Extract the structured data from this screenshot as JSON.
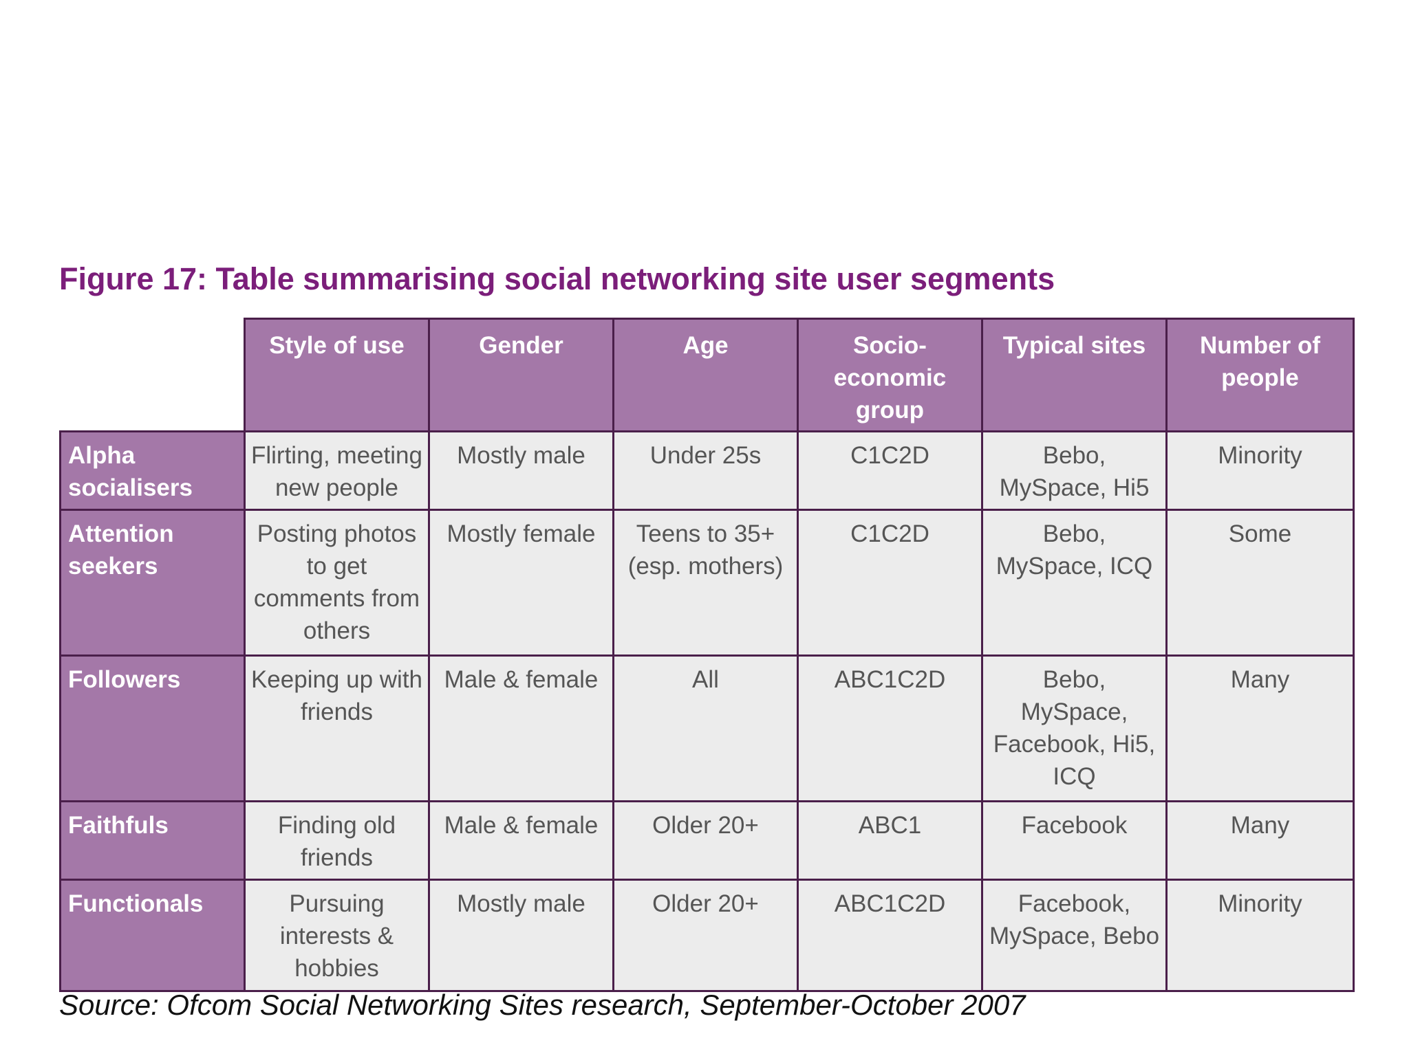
{
  "title": "Figure 17: Table summarising social networking site user segments",
  "columns": [
    "Style of use",
    "Gender",
    "Age",
    "Socio-economic group",
    "Typical sites",
    "Number of people"
  ],
  "rows": [
    {
      "segment": "Alpha socialisers",
      "cells": [
        "Flirting, meeting new people",
        "Mostly male",
        "Under 25s",
        "C1C2D",
        "Bebo, MySpace, Hi5",
        "Minority"
      ]
    },
    {
      "segment": "Attention seekers",
      "cells": [
        "Posting photos to get comments from others",
        "Mostly female",
        "Teens to 35+ (esp. mothers)",
        "C1C2D",
        "Bebo, MySpace, ICQ",
        "Some"
      ]
    },
    {
      "segment": "Followers",
      "cells": [
        "Keeping up with friends",
        "Male & female",
        "All",
        "ABC1C2D",
        "Bebo, MySpace, Facebook, Hi5, ICQ",
        "Many"
      ]
    },
    {
      "segment": "Faithfuls",
      "cells": [
        "Finding old friends",
        "Male & female",
        "Older 20+",
        "ABC1",
        "Facebook",
        "Many"
      ]
    },
    {
      "segment": "Functionals",
      "cells": [
        "Pursuing interests & hobbies",
        "Mostly male",
        "Older 20+",
        "ABC1C2D",
        "Facebook, MySpace, Bebo",
        "Minority"
      ]
    }
  ],
  "source": "Source: Ofcom Social Networking Sites research, September-October 2007",
  "colors": {
    "title": "#7b1e7a",
    "header_bg": "#a478a8",
    "cell_bg": "#ececec",
    "border": "#4a1f4a"
  }
}
